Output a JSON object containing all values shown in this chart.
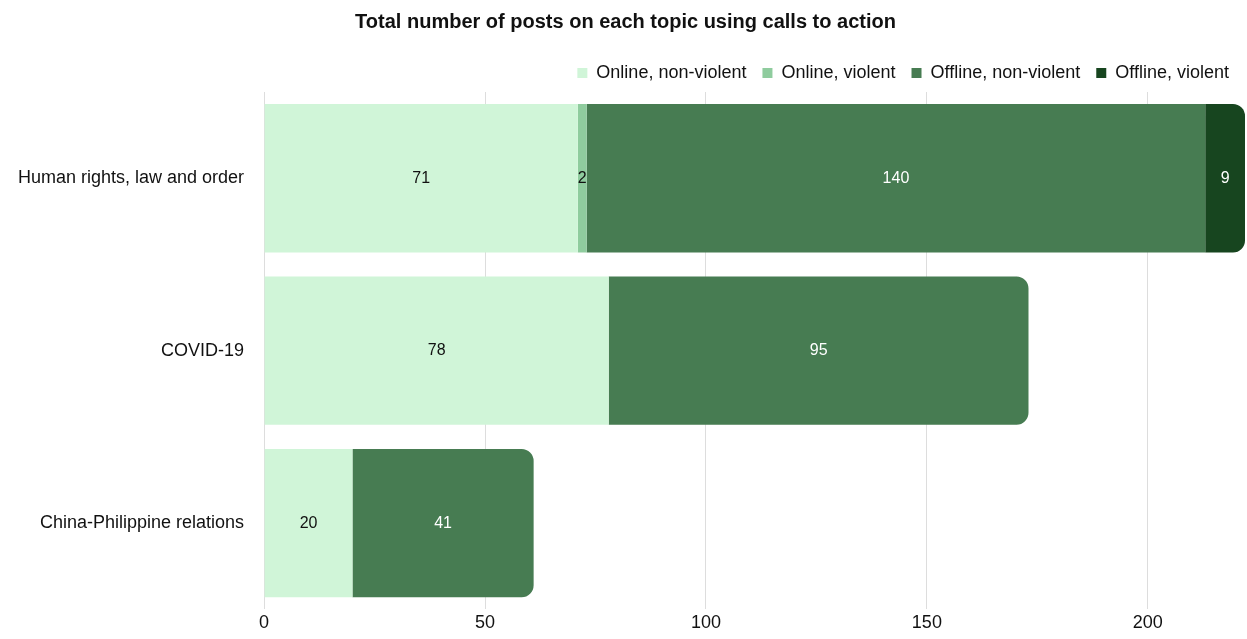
{
  "chart_data": {
    "type": "bar",
    "orientation": "horizontal",
    "stacked": true,
    "title": "Total number of posts on each topic using calls to action",
    "categories": [
      "Human rights, law and order",
      "COVID-19",
      "China-Philippine relations"
    ],
    "series": [
      {
        "name": "Online, non-violent",
        "color": "#d0f5d8",
        "values": [
          71,
          78,
          20
        ]
      },
      {
        "name": "Online, violent",
        "color": "#8fcc9e",
        "values": [
          2,
          null,
          null
        ]
      },
      {
        "name": "Offline, non-violent",
        "color": "#477c52",
        "values": [
          140,
          95,
          41
        ]
      },
      {
        "name": "Offline, violent",
        "color": "#17451f",
        "values": [
          9,
          null,
          null
        ]
      }
    ],
    "xlim": [
      0,
      222
    ],
    "xticks": [
      0,
      50,
      100,
      150,
      200
    ],
    "grid": "x",
    "legend": "top right",
    "data_labels": true
  }
}
